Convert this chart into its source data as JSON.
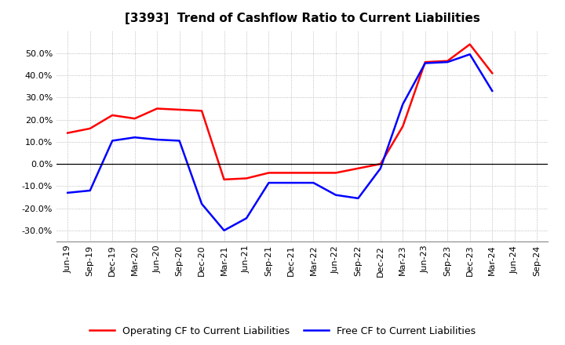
{
  "title": "[3393]  Trend of Cashflow Ratio to Current Liabilities",
  "x_labels": [
    "Jun-19",
    "Sep-19",
    "Dec-19",
    "Mar-20",
    "Jun-20",
    "Sep-20",
    "Dec-20",
    "Mar-21",
    "Jun-21",
    "Sep-21",
    "Dec-21",
    "Mar-22",
    "Jun-22",
    "Sep-22",
    "Dec-22",
    "Mar-23",
    "Jun-23",
    "Sep-23",
    "Dec-23",
    "Mar-24",
    "Jun-24",
    "Sep-24"
  ],
  "operating_cf": [
    0.14,
    0.16,
    0.22,
    0.205,
    0.25,
    0.245,
    0.24,
    -0.07,
    -0.065,
    -0.04,
    -0.04,
    -0.04,
    -0.04,
    -0.02,
    0.0,
    0.17,
    0.46,
    0.465,
    0.54,
    0.41,
    null,
    null
  ],
  "free_cf": [
    -0.13,
    -0.12,
    0.105,
    0.12,
    0.11,
    0.105,
    -0.18,
    -0.3,
    -0.245,
    -0.085,
    -0.085,
    -0.085,
    -0.14,
    -0.155,
    -0.02,
    0.27,
    0.455,
    0.46,
    0.495,
    0.33,
    null,
    null
  ],
  "operating_color": "#FF0000",
  "free_color": "#0000FF",
  "ylim": [
    -0.35,
    0.6
  ],
  "yticks": [
    -0.3,
    -0.2,
    -0.1,
    0.0,
    0.1,
    0.2,
    0.3,
    0.4,
    0.5
  ],
  "background_color": "#FFFFFF",
  "plot_bg_color": "#FFFFFF",
  "grid_color": "#AAAAAA",
  "title_fontsize": 11,
  "legend_fontsize": 9,
  "tick_fontsize": 8
}
